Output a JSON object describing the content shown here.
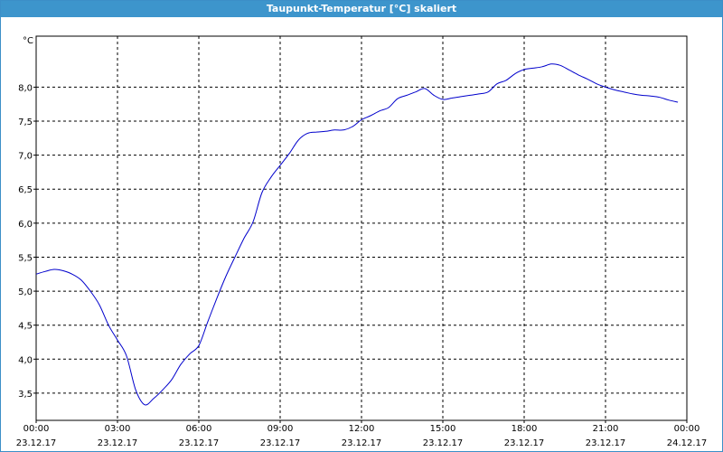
{
  "window": {
    "title": "Taupunkt-Temperatur [°C] skaliert"
  },
  "chart_data": {
    "type": "line",
    "title": "Taupunkt-Temperatur [°C] skaliert",
    "ylabel": "°C",
    "xlabel": "",
    "ylim": [
      3.1,
      8.75
    ],
    "xlim": [
      0,
      24
    ],
    "grid": true,
    "line_color": "#0000cc",
    "y_ticks": [
      {
        "value": 3.5,
        "label": "3,5"
      },
      {
        "value": 4.0,
        "label": "4,0"
      },
      {
        "value": 4.5,
        "label": "4,5"
      },
      {
        "value": 5.0,
        "label": "5,0"
      },
      {
        "value": 5.5,
        "label": "5,5"
      },
      {
        "value": 6.0,
        "label": "6,0"
      },
      {
        "value": 6.5,
        "label": "6,5"
      },
      {
        "value": 7.0,
        "label": "7,0"
      },
      {
        "value": 7.5,
        "label": "7,5"
      },
      {
        "value": 8.0,
        "label": "8,0"
      }
    ],
    "x_ticks": [
      {
        "value": 0,
        "time": "00:00",
        "date": "23.12.17"
      },
      {
        "value": 3,
        "time": "03:00",
        "date": "23.12.17"
      },
      {
        "value": 6,
        "time": "06:00",
        "date": "23.12.17"
      },
      {
        "value": 9,
        "time": "09:00",
        "date": "23.12.17"
      },
      {
        "value": 12,
        "time": "12:00",
        "date": "23.12.17"
      },
      {
        "value": 15,
        "time": "15:00",
        "date": "23.12.17"
      },
      {
        "value": 18,
        "time": "18:00",
        "date": "23.12.17"
      },
      {
        "value": 21,
        "time": "21:00",
        "date": "23.12.17"
      },
      {
        "value": 24,
        "time": "00:00",
        "date": "24.12.17"
      }
    ],
    "series": [
      {
        "x": [
          0,
          0.33,
          0.67,
          1.0,
          1.33,
          1.67,
          2.0,
          2.33,
          2.67,
          3.0,
          3.33,
          3.67,
          4.0,
          4.33,
          4.67,
          5.0,
          5.33,
          5.67,
          6.0,
          6.33,
          6.67,
          7.0,
          7.33,
          7.67,
          8.0,
          8.33,
          8.67,
          9.0,
          9.33,
          9.67,
          10.0,
          10.33,
          10.67,
          11.0,
          11.33,
          11.67,
          12.0,
          12.33,
          12.67,
          13.0,
          13.33,
          13.67,
          14.0,
          14.33,
          14.67,
          15.0,
          15.33,
          15.67,
          16.0,
          16.33,
          16.67,
          17.0,
          17.33,
          17.67,
          18.0,
          18.33,
          18.67,
          19.0,
          19.33,
          19.67,
          20.0,
          20.33,
          20.67,
          21.0,
          21.33,
          21.67,
          22.0,
          22.33,
          22.67,
          23.0,
          23.33,
          23.67
        ],
        "y": [
          5.25,
          5.29,
          5.32,
          5.3,
          5.25,
          5.16,
          5.0,
          4.8,
          4.5,
          4.28,
          4.05,
          3.55,
          3.33,
          3.42,
          3.55,
          3.7,
          3.92,
          4.08,
          4.2,
          4.55,
          4.9,
          5.22,
          5.5,
          5.78,
          6.02,
          6.45,
          6.68,
          6.85,
          7.02,
          7.22,
          7.32,
          7.34,
          7.35,
          7.37,
          7.37,
          7.42,
          7.52,
          7.58,
          7.65,
          7.7,
          7.83,
          7.88,
          7.93,
          7.98,
          7.88,
          7.82,
          7.84,
          7.86,
          7.88,
          7.9,
          7.93,
          8.05,
          8.1,
          8.2,
          8.26,
          8.28,
          8.3,
          8.34,
          8.32,
          8.25,
          8.18,
          8.12,
          8.05,
          8.0,
          7.96,
          7.93,
          7.9,
          7.88,
          7.87,
          7.85,
          7.81,
          7.78
        ]
      }
    ]
  }
}
